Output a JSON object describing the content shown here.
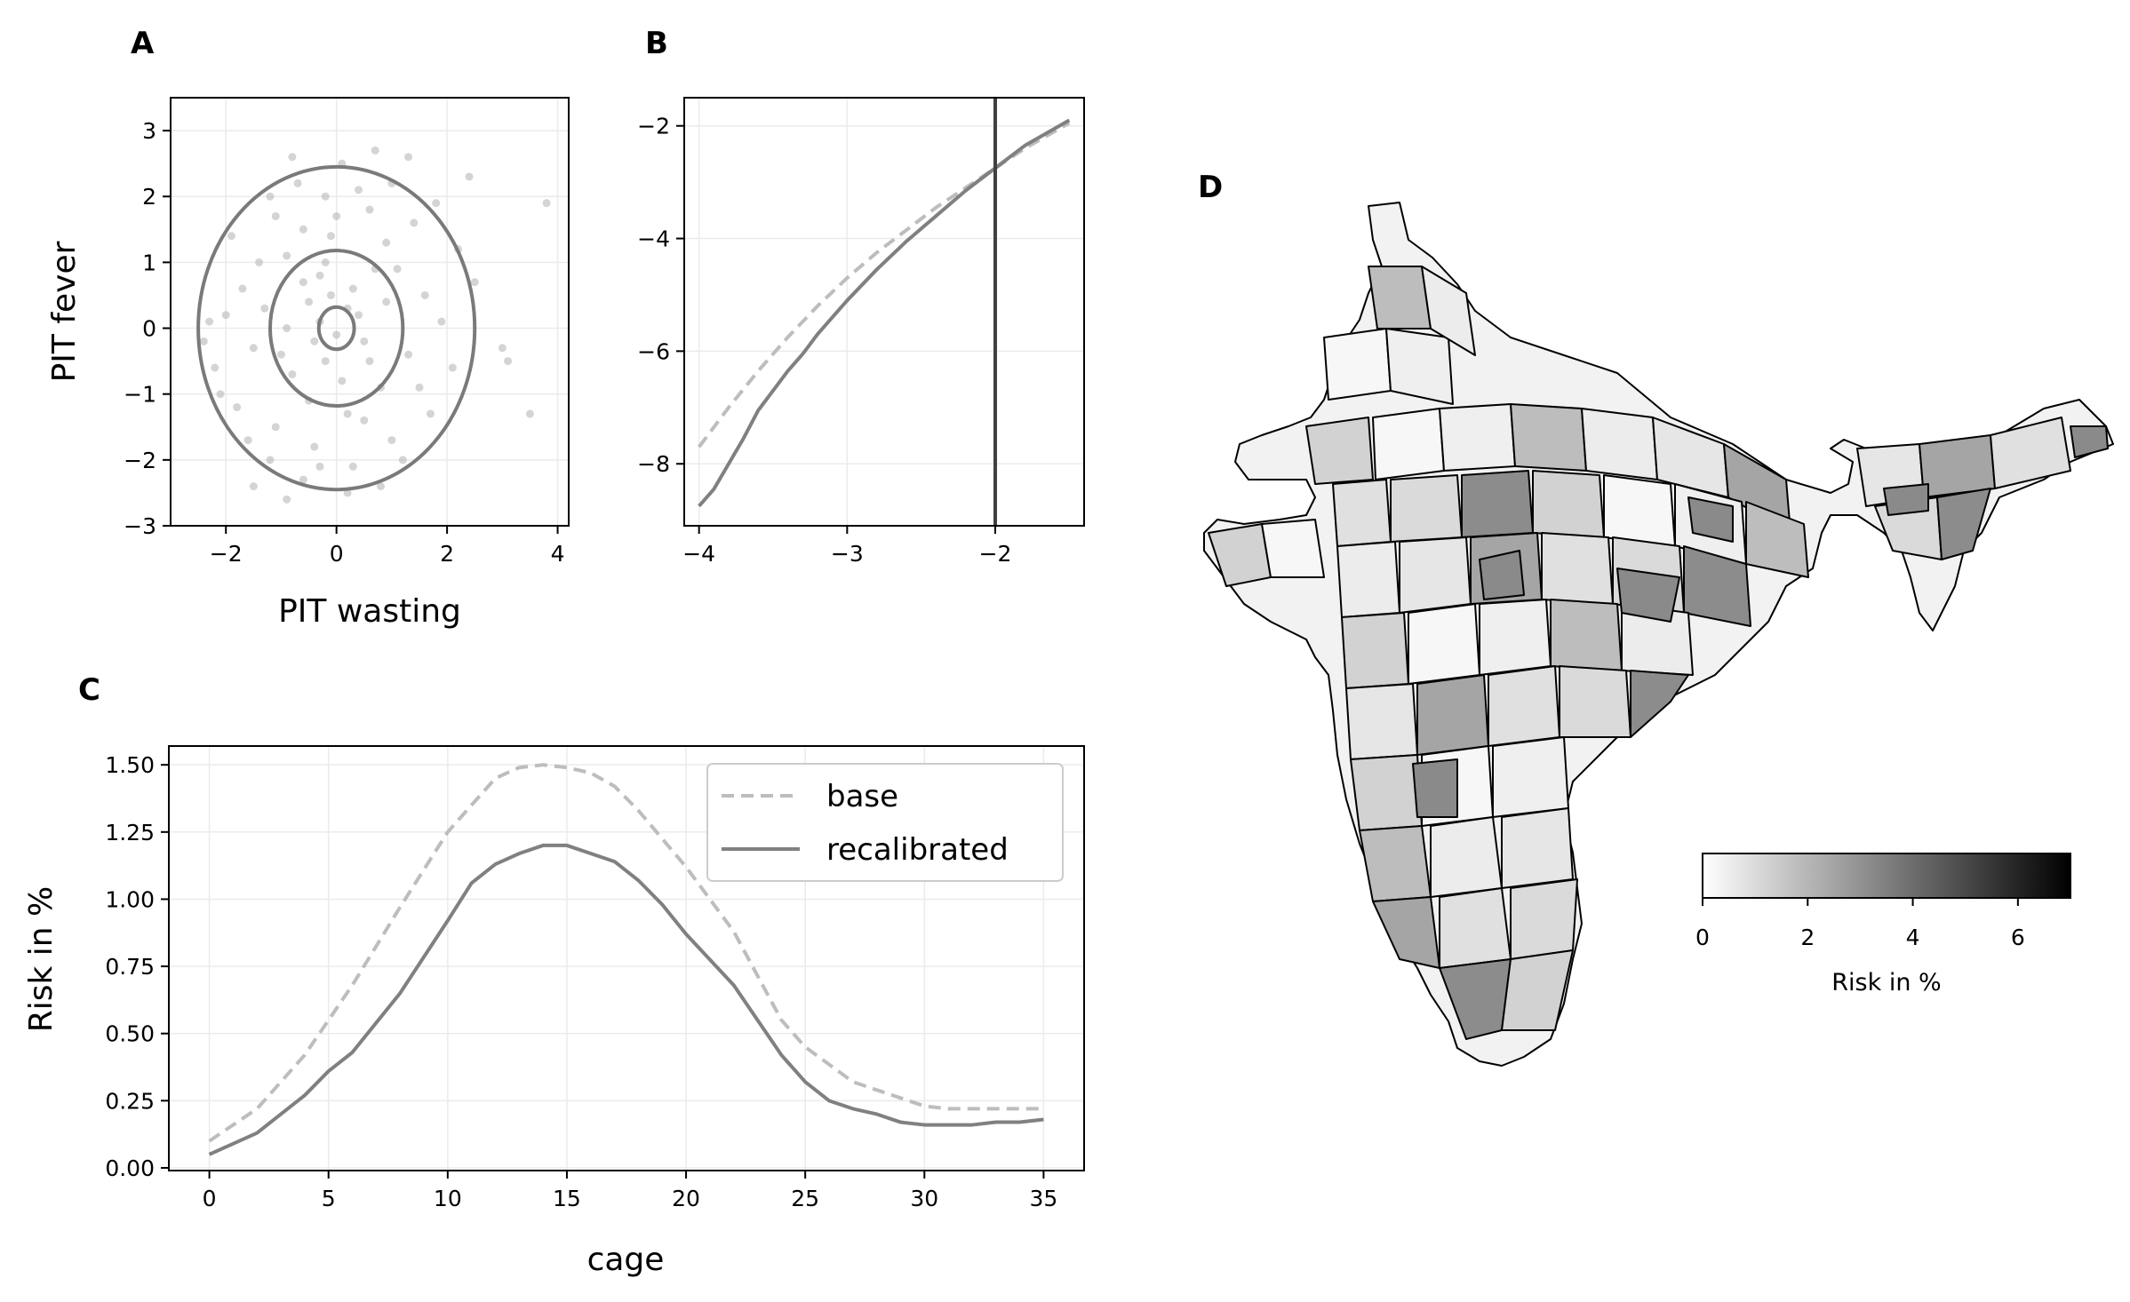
{
  "colors": {
    "grid": "#ebebeb",
    "axis": "#000000",
    "base": "#bdbdbd",
    "recalibrated": "#808080",
    "scatter": "#b0b0b0",
    "ellipse": "#7a7a7a",
    "vline": "#404040"
  },
  "chart_data": [
    {
      "panel": "A",
      "type": "scatter",
      "title": "A",
      "xlabel": "PIT wasting",
      "ylabel": "PIT fever",
      "xlim": [
        -3,
        4.2
      ],
      "ylim": [
        -3,
        3.5
      ],
      "xticks": [
        -2,
        0,
        2,
        4
      ],
      "yticks": [
        -3,
        -2,
        -1,
        0,
        1,
        2,
        3
      ],
      "xtick_labels": [
        "−2",
        "0",
        "2",
        "4"
      ],
      "ytick_labels": [
        "−3",
        "−2",
        "−1",
        "0",
        "1",
        "2",
        "3"
      ],
      "grid": true,
      "points": [
        [
          -0.6,
          1.5
        ],
        [
          -0.3,
          0.8
        ],
        [
          0.1,
          2.5
        ],
        [
          0.7,
          2.7
        ],
        [
          0.9,
          1.3
        ],
        [
          1.8,
          1.9
        ],
        [
          2.4,
          2.3
        ],
        [
          3.8,
          1.9
        ],
        [
          -1.2,
          2.0
        ],
        [
          -0.9,
          1.1
        ],
        [
          -0.5,
          0.4
        ],
        [
          0.3,
          0.6
        ],
        [
          0.5,
          -0.2
        ],
        [
          -0.2,
          -0.5
        ],
        [
          -0.8,
          -0.7
        ],
        [
          -1.5,
          -0.3
        ],
        [
          -2.0,
          0.2
        ],
        [
          -2.2,
          -0.6
        ],
        [
          -1.8,
          -1.2
        ],
        [
          -1.1,
          -1.5
        ],
        [
          -0.4,
          -1.8
        ],
        [
          0.2,
          -1.3
        ],
        [
          0.8,
          -0.9
        ],
        [
          1.3,
          -0.4
        ],
        [
          1.6,
          0.5
        ],
        [
          1.1,
          0.9
        ],
        [
          0.6,
          1.8
        ],
        [
          -0.1,
          1.4
        ],
        [
          -0.7,
          2.2
        ],
        [
          -1.4,
          1.0
        ],
        [
          -1.7,
          0.6
        ],
        [
          -2.3,
          0.1
        ],
        [
          -1.2,
          -2.0
        ],
        [
          -0.6,
          -2.3
        ],
        [
          0.3,
          -2.1
        ],
        [
          1.0,
          -1.7
        ],
        [
          1.7,
          -1.3
        ],
        [
          2.1,
          -0.6
        ],
        [
          2.5,
          0.7
        ],
        [
          3.0,
          -0.3
        ],
        [
          3.1,
          -0.5
        ],
        [
          3.5,
          -1.3
        ],
        [
          -0.3,
          0.1
        ],
        [
          0.0,
          -0.1
        ],
        [
          0.4,
          0.2
        ],
        [
          -0.4,
          -0.2
        ],
        [
          0.2,
          0.3
        ],
        [
          -0.1,
          0.5
        ],
        [
          0.6,
          -0.5
        ],
        [
          -0.9,
          0.0
        ],
        [
          -1.3,
          0.3
        ],
        [
          -0.2,
          1.0
        ],
        [
          0.9,
          0.4
        ],
        [
          1.4,
          1.6
        ],
        [
          -1.0,
          -0.4
        ],
        [
          -0.5,
          -1.1
        ],
        [
          0.5,
          -1.4
        ],
        [
          1.2,
          -2.0
        ],
        [
          -1.6,
          -1.7
        ],
        [
          -2.1,
          -1.0
        ],
        [
          -0.8,
          2.6
        ],
        [
          0.4,
          2.1
        ],
        [
          1.0,
          2.2
        ],
        [
          -1.9,
          1.4
        ],
        [
          -1.5,
          -2.4
        ],
        [
          -0.9,
          -2.6
        ],
        [
          0.2,
          -2.5
        ],
        [
          -0.2,
          2.0
        ],
        [
          0.1,
          -0.8
        ],
        [
          -0.6,
          0.7
        ],
        [
          0.7,
          0.9
        ],
        [
          1.5,
          -0.9
        ],
        [
          2.2,
          1.2
        ],
        [
          -2.4,
          -0.2
        ],
        [
          -1.1,
          1.7
        ],
        [
          0.0,
          1.7
        ],
        [
          1.9,
          0.1
        ],
        [
          -0.3,
          -2.1
        ],
        [
          0.8,
          -2.4
        ],
        [
          1.3,
          2.6
        ]
      ],
      "ellipses": [
        {
          "rx": 2.5,
          "ry": 2.45
        },
        {
          "rx": 1.2,
          "ry": 1.18
        },
        {
          "rx": 0.32,
          "ry": 0.32
        }
      ]
    },
    {
      "panel": "B",
      "type": "line",
      "title": "B",
      "xlabel": "",
      "ylabel": "",
      "xlim": [
        -4.1,
        -1.4
      ],
      "ylim": [
        -9.1,
        -1.5
      ],
      "xticks": [
        -4,
        -3,
        -2
      ],
      "yticks": [
        -2,
        -4,
        -6,
        -8
      ],
      "xtick_labels": [
        "−4",
        "−3",
        "−2"
      ],
      "ytick_labels": [
        "−2",
        "−4",
        "−6",
        "−8"
      ],
      "grid": true,
      "vline_x": -2,
      "series": [
        {
          "name": "base",
          "style": "dashed",
          "x": [
            -4.0,
            -3.8,
            -3.6,
            -3.4,
            -3.2,
            -3.0,
            -2.8,
            -2.6,
            -2.4,
            -2.2,
            -2.0,
            -1.8,
            -1.6,
            -1.5
          ],
          "y": [
            -7.7,
            -7.0,
            -6.35,
            -5.75,
            -5.2,
            -4.7,
            -4.25,
            -3.85,
            -3.45,
            -3.1,
            -2.75,
            -2.4,
            -2.1,
            -1.95
          ]
        },
        {
          "name": "recalibrated",
          "style": "solid",
          "x": [
            -4.0,
            -3.9,
            -3.8,
            -3.7,
            -3.6,
            -3.5,
            -3.4,
            -3.3,
            -3.2,
            -3.0,
            -2.8,
            -2.6,
            -2.4,
            -2.2,
            -2.0,
            -1.8,
            -1.6,
            -1.5
          ],
          "y": [
            -8.75,
            -8.45,
            -8.0,
            -7.55,
            -7.05,
            -6.7,
            -6.35,
            -6.05,
            -5.7,
            -5.1,
            -4.55,
            -4.05,
            -3.6,
            -3.15,
            -2.75,
            -2.35,
            -2.05,
            -1.9
          ]
        }
      ]
    },
    {
      "panel": "C",
      "type": "line",
      "title": "C",
      "xlabel": "cage",
      "ylabel": "Risk in %",
      "xlim": [
        -1.7,
        36.7
      ],
      "ylim": [
        -0.01,
        1.57
      ],
      "xticks": [
        0,
        5,
        10,
        15,
        20,
        25,
        30,
        35
      ],
      "yticks": [
        0.0,
        0.25,
        0.5,
        0.75,
        1.0,
        1.25,
        1.5
      ],
      "xtick_labels": [
        "0",
        "5",
        "10",
        "15",
        "20",
        "25",
        "30",
        "35"
      ],
      "ytick_labels": [
        "0.00",
        "0.25",
        "0.50",
        "0.75",
        "1.00",
        "1.25",
        "1.50"
      ],
      "grid": true,
      "legend": {
        "position": "top-right",
        "entries": [
          "base",
          "recalibrated"
        ]
      },
      "series": [
        {
          "name": "base",
          "style": "dashed",
          "x": [
            0,
            2,
            4,
            6,
            8,
            10,
            12,
            13,
            14,
            15,
            16,
            17,
            18,
            20,
            22,
            24,
            25,
            27,
            29,
            30,
            31,
            32,
            33,
            34,
            35
          ],
          "y": [
            0.1,
            0.22,
            0.42,
            0.68,
            0.97,
            1.25,
            1.45,
            1.49,
            1.5,
            1.49,
            1.47,
            1.42,
            1.33,
            1.12,
            0.88,
            0.55,
            0.45,
            0.32,
            0.26,
            0.23,
            0.22,
            0.22,
            0.22,
            0.22,
            0.22
          ]
        },
        {
          "name": "recalibrated",
          "style": "solid",
          "x": [
            0,
            2,
            4,
            5,
            6,
            8,
            10,
            11,
            12,
            13,
            14,
            15,
            16,
            17,
            18,
            19,
            20,
            22,
            24,
            25,
            26,
            27,
            28,
            29,
            30,
            31,
            32,
            33,
            34,
            35
          ],
          "y": [
            0.05,
            0.13,
            0.27,
            0.36,
            0.43,
            0.65,
            0.92,
            1.06,
            1.13,
            1.17,
            1.2,
            1.2,
            1.17,
            1.14,
            1.07,
            0.98,
            0.87,
            0.68,
            0.42,
            0.32,
            0.25,
            0.22,
            0.2,
            0.17,
            0.16,
            0.16,
            0.16,
            0.17,
            0.17,
            0.18
          ]
        }
      ]
    },
    {
      "panel": "D",
      "type": "heatmap",
      "title": "D",
      "description_label": "choropleth of district risk",
      "colorbar": {
        "label": "Risk in %",
        "min": 0,
        "max": 7,
        "ticks": [
          0,
          2,
          4,
          6
        ],
        "tick_labels": [
          "0",
          "2",
          "4",
          "6"
        ]
      }
    }
  ],
  "panels": {
    "a_letter": "A",
    "b_letter": "B",
    "c_letter": "C",
    "d_letter": "D"
  },
  "legend": {
    "base_label": "base",
    "recalibrated_label": "recalibrated"
  }
}
